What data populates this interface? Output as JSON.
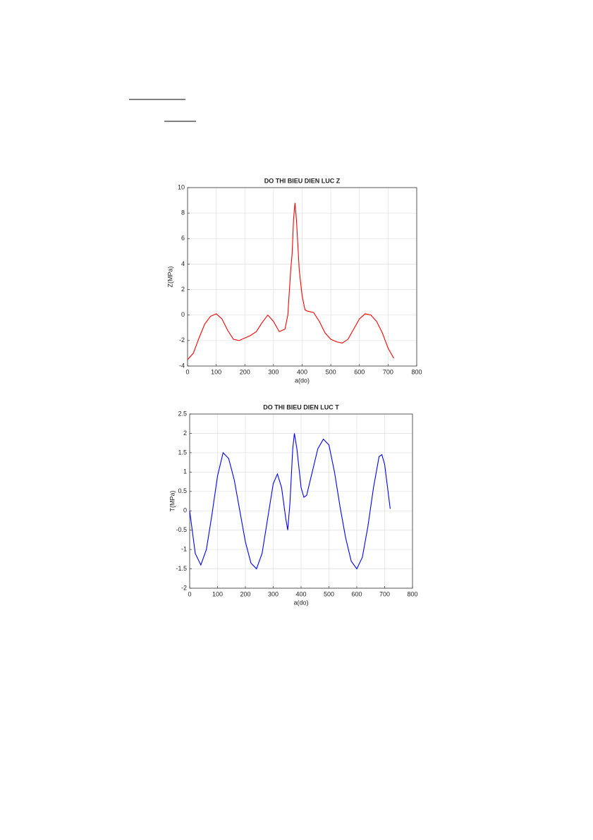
{
  "chart_data": [
    {
      "type": "line",
      "title": "DO THI BIEU DIEN LUC Z",
      "xlabel": "a(do)",
      "ylabel": "Z(MPa)",
      "color": "#ff0000",
      "grid": true,
      "xlim": [
        0,
        800
      ],
      "xticks": [
        0,
        100,
        200,
        300,
        400,
        500,
        600,
        700,
        800
      ],
      "ylim": [
        -4,
        10
      ],
      "yticks": [
        -4,
        -2,
        0,
        2,
        4,
        6,
        8,
        10
      ],
      "x": [
        0,
        20,
        40,
        60,
        80,
        100,
        120,
        140,
        160,
        180,
        200,
        220,
        240,
        260,
        280,
        300,
        320,
        340,
        350,
        360,
        365,
        370,
        375,
        380,
        390,
        400,
        410,
        420,
        440,
        460,
        480,
        500,
        520,
        540,
        560,
        580,
        600,
        620,
        640,
        660,
        680,
        700,
        720
      ],
      "values": [
        -3.5,
        -3.0,
        -1.8,
        -0.7,
        -0.1,
        0.1,
        -0.3,
        -1.2,
        -1.9,
        -2.0,
        -1.8,
        -1.6,
        -1.3,
        -0.6,
        0.0,
        -0.5,
        -1.3,
        -1.1,
        0.0,
        3.5,
        4.8,
        7.5,
        8.8,
        7.5,
        3.5,
        1.5,
        0.4,
        0.3,
        0.2,
        -0.5,
        -1.4,
        -1.9,
        -2.1,
        -2.2,
        -1.9,
        -1.1,
        -0.3,
        0.1,
        0.0,
        -0.5,
        -1.4,
        -2.6,
        -3.4
      ]
    },
    {
      "type": "line",
      "title": "DO THI BIEU DIEN LUC T",
      "xlabel": "a(do)",
      "ylabel": "T(MPa)",
      "color": "#0000ff",
      "grid": true,
      "xlim": [
        0,
        800
      ],
      "xticks": [
        0,
        100,
        200,
        300,
        400,
        500,
        600,
        700,
        800
      ],
      "ylim": [
        -2,
        2.5
      ],
      "yticks": [
        -2,
        -1.5,
        -1,
        -0.5,
        0,
        0.5,
        1,
        1.5,
        2,
        2.5
      ],
      "x": [
        0,
        20,
        40,
        60,
        80,
        100,
        120,
        140,
        160,
        180,
        200,
        220,
        240,
        260,
        280,
        300,
        315,
        330,
        345,
        352,
        360,
        370,
        376,
        385,
        400,
        410,
        420,
        440,
        460,
        480,
        500,
        520,
        540,
        560,
        580,
        600,
        620,
        640,
        660,
        680,
        690,
        700,
        720
      ],
      "values": [
        0.0,
        -1.1,
        -1.4,
        -1.0,
        -0.1,
        0.9,
        1.5,
        1.35,
        0.8,
        0.0,
        -0.8,
        -1.35,
        -1.5,
        -1.1,
        -0.2,
        0.7,
        0.95,
        0.6,
        -0.2,
        -0.5,
        0.2,
        1.6,
        2.0,
        1.6,
        0.6,
        0.35,
        0.4,
        1.0,
        1.6,
        1.85,
        1.7,
        1.0,
        0.1,
        -0.7,
        -1.3,
        -1.5,
        -1.2,
        -0.4,
        0.6,
        1.4,
        1.45,
        1.2,
        0.05
      ]
    }
  ]
}
